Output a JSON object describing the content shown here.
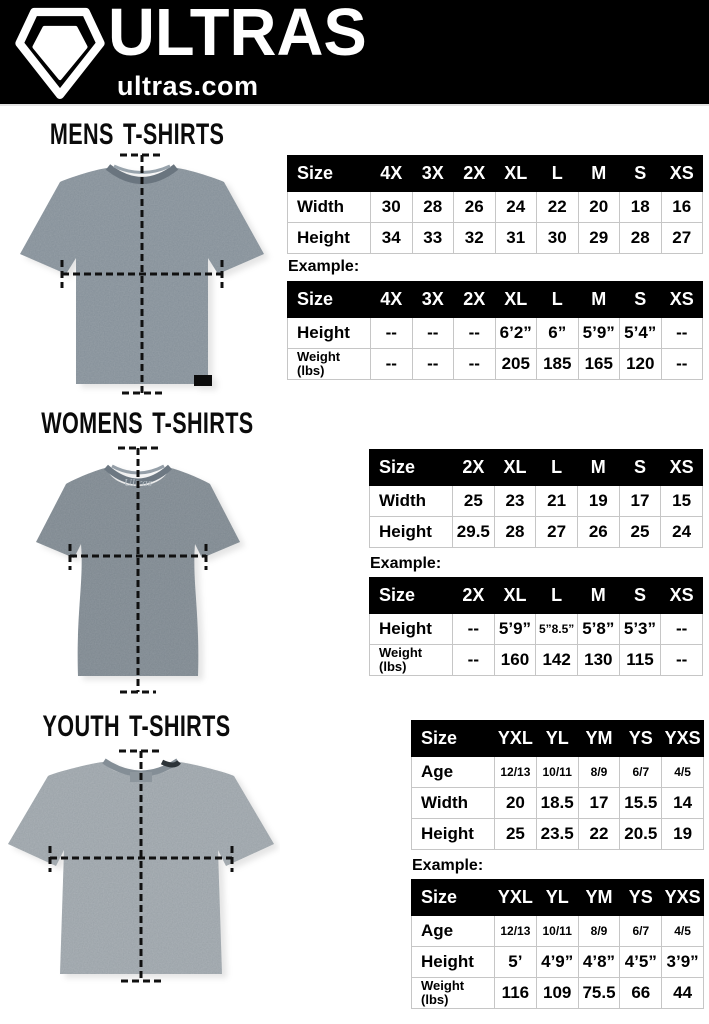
{
  "header": {
    "brand": "ULTRAS",
    "site": "ultras.com"
  },
  "colors": {
    "page_bg": "#ffffff",
    "header_bg": "#000000",
    "brand_text": "#ffffff",
    "table_header_bg": "#000000",
    "table_header_text": "#ffffff",
    "table_border": "#c6c6c6",
    "body_text": "#000000",
    "tee_mens": "#848f98",
    "tee_womens": "#7d878f",
    "tee_youth": "#99a1a7",
    "measure_line": "#101010"
  },
  "sections": [
    {
      "id": "mens",
      "title": "MENS T-SHIRTS",
      "example_label": "Example:",
      "size_table": {
        "columns": [
          "Size",
          "4X",
          "3X",
          "2X",
          "XL",
          "L",
          "M",
          "S",
          "XS"
        ],
        "rows": [
          {
            "label": "Width",
            "values": [
              "30",
              "28",
              "26",
              "24",
              "22",
              "20",
              "18",
              "16"
            ]
          },
          {
            "label": "Height",
            "values": [
              "34",
              "33",
              "32",
              "31",
              "30",
              "29",
              "28",
              "27"
            ]
          }
        ]
      },
      "example_table": {
        "columns": [
          "Size",
          "4X",
          "3X",
          "2X",
          "XL",
          "L",
          "M",
          "S",
          "XS"
        ],
        "rows": [
          {
            "label": "Height",
            "values": [
              "--",
              "--",
              "--",
              "6’2”",
              "6”",
              "5’9”",
              "5’4”",
              "--"
            ]
          },
          {
            "label": "Weight (lbs)",
            "values": [
              "--",
              "--",
              "--",
              "205",
              "185",
              "165",
              "120",
              "--"
            ]
          }
        ]
      }
    },
    {
      "id": "womens",
      "title": "WOMENS T-SHIRTS",
      "example_label": "Example:",
      "size_table": {
        "columns": [
          "Size",
          "2X",
          "XL",
          "L",
          "M",
          "S",
          "XS"
        ],
        "rows": [
          {
            "label": "Width",
            "values": [
              "25",
              "23",
              "21",
              "19",
              "17",
              "15"
            ]
          },
          {
            "label": "Height",
            "values": [
              "29.5",
              "28",
              "27",
              "26",
              "25",
              "24"
            ]
          }
        ]
      },
      "example_table": {
        "columns": [
          "Size",
          "2X",
          "XL",
          "L",
          "M",
          "S",
          "XS"
        ],
        "rows": [
          {
            "label": "Height",
            "values": [
              "--",
              "5’9”",
              "5”8.5”",
              "5’8”",
              "5’3”",
              "--"
            ]
          },
          {
            "label": "Weight (lbs)",
            "values": [
              "--",
              "160",
              "142",
              "130",
              "115",
              "--"
            ]
          }
        ]
      }
    },
    {
      "id": "youth",
      "title": "YOUTH T-SHIRTS",
      "example_label": "Example:",
      "size_table": {
        "columns": [
          "Size",
          "YXL",
          "YL",
          "YM",
          "YS",
          "YXS"
        ],
        "rows": [
          {
            "label": "Age",
            "values": [
              "12/13",
              "10/11",
              "8/9",
              "6/7",
              "4/5"
            ]
          },
          {
            "label": "Width",
            "values": [
              "20",
              "18.5",
              "17",
              "15.5",
              "14"
            ]
          },
          {
            "label": "Height",
            "values": [
              "25",
              "23.5",
              "22",
              "20.5",
              "19"
            ]
          }
        ]
      },
      "example_table": {
        "columns": [
          "Size",
          "YXL",
          "YL",
          "YM",
          "YS",
          "YXS"
        ],
        "rows": [
          {
            "label": "Age",
            "values": [
              "12/13",
              "10/11",
              "8/9",
              "6/7",
              "4/5"
            ]
          },
          {
            "label": "Height",
            "values": [
              "5’",
              "4’9”",
              "4’8”",
              "4’5”",
              "3’9”"
            ]
          },
          {
            "label": "Weight (lbs)",
            "values": [
              "116",
              "109",
              "75.5",
              "66",
              "44"
            ]
          }
        ]
      }
    }
  ]
}
